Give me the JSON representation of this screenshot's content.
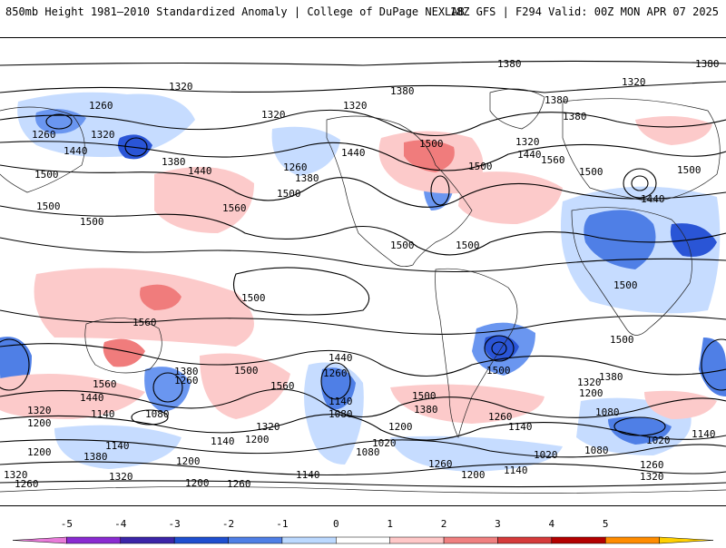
{
  "header": {
    "left_title": "850mb Height 1981–2010 Standardized Anomaly | College of DuPage NEXLAB",
    "right_title": "18Z GFS | F294 Valid: 00Z MON APR 07 2025"
  },
  "colorbar": {
    "ticks": [
      "-5",
      "-4",
      "-3",
      "-2",
      "-1",
      "0",
      "1",
      "2",
      "3",
      "4",
      "5"
    ],
    "colors": [
      "#e87bd9",
      "#8a2bd1",
      "#3c25a8",
      "#1f4fd0",
      "#4f7fe6",
      "#bcd9ff",
      "#ffffff",
      "#ffc8c8",
      "#f08080",
      "#d63b3b",
      "#b40000",
      "#ff8c00",
      "#ffd000"
    ]
  },
  "contour_labels": {
    "1320": "1320",
    "1380": "1380",
    "1260": "1260",
    "1440": "1440",
    "1500": "1500",
    "1560": "1560",
    "1200": "1200",
    "1140": "1140",
    "1080": "1080",
    "1020": "1020"
  },
  "palette": {
    "neg1": "#c6dcff",
    "neg2": "#6a96f0",
    "neg3": "#2a55d6",
    "pos1": "#fccaca",
    "pos2": "#f07c7c",
    "contour": "#000000"
  }
}
